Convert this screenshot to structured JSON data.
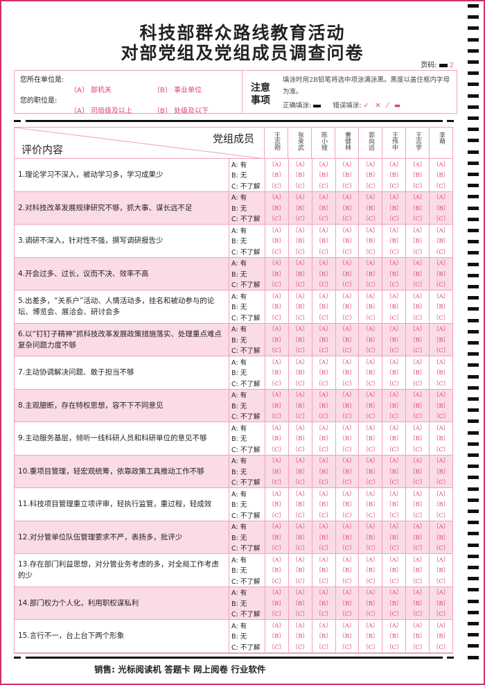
{
  "title": {
    "line1": "科技部群众路线教育活动",
    "line2": "对部党组及党组成员调查问卷"
  },
  "page": {
    "label": "页码:",
    "value": "2"
  },
  "info": {
    "unit_label": "您所在单位是:",
    "unit_a": "〔A〕 部机关",
    "unit_b": "〔B〕 事业单位",
    "post_label": "您的职位是:",
    "post_a": "〔A〕 司局级及以上",
    "post_b": "〔B〕 处级及以下",
    "note_title_1": "注意",
    "note_title_2": "事项",
    "note_text": "填涂时用2B铅笔将选中项涂满涂黑。黑度以盖住框内字母为准。",
    "correct_label": "正确填涂:",
    "wrong_label": "错误填涂:",
    "wrong_marks": "✓ ✕ ⁄ ▬"
  },
  "table": {
    "header_members_label": "党组成员",
    "header_content_label": "评价内容",
    "members": [
      "王志刚",
      "张来武",
      "陈小娅",
      "曹健林",
      "郭向远",
      "王伟中",
      "王志学",
      "李萌"
    ],
    "options": [
      "A:  有",
      "B:  无",
      "C:  不了解"
    ],
    "bubbles": [
      "〔A〕",
      "〔B〕",
      "〔C〕"
    ],
    "questions": [
      "1.理论学习不深入，被动学习多，学习成果少",
      "2.对科技改革发展规律研究不够，抓大事、谋长远不足",
      "3.调研不深入，针对性不强，撰写调研报告少",
      "4.开会过多、过长，议而不决、效率不高",
      "5.出差多，“关系户”活动、人情活动多，挂名和被动参与的论坛、博览会、展洽会、研讨会多",
      "6.以“钉钉子精神”抓科技改革发展政策措施落实、处理重点难点复杂问题力度不够",
      "7.主动协调解决问题、敢于担当不够",
      "8.主观臆断，存在特权思想，容不下不同意见",
      "9.主动服务基层，倾听一线科研人员和科研单位的意见不够",
      "10.重项目管理，轻宏观统筹，依靠政策工具推动工作不够",
      "11.科技项目管理重立项评审，轻执行监管，重过程，轻成效",
      "12.对分管单位队伍管理要求不严，表扬多，批评少",
      "13.存在部门利益思想，对分管业务考虑的多，对全局工作考虑的少",
      "14.部门权力个人化，利用职权谋私利",
      "15.言行不一，台上台下两个形象"
    ]
  },
  "footer": {
    "sales": "销售:  光标阅读机  答题卡  网上阅卷  行业软件"
  },
  "colors": {
    "accent": "#e0407a",
    "border": "#f0a0bf",
    "row_alt": "#fadbe6"
  }
}
